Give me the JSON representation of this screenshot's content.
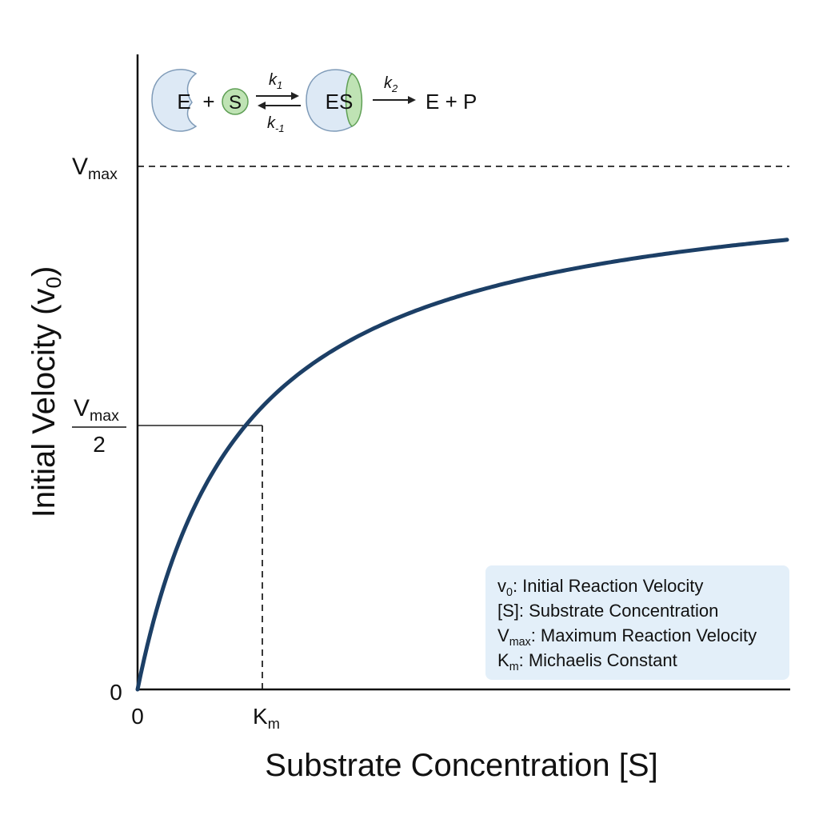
{
  "y_axis": {
    "label": {
      "text": "Initial Velocity (v",
      "sub": "0",
      "end": ")"
    }
  },
  "x_axis": {
    "label": "Substrate Concentration [S]"
  },
  "ticks": {
    "x_origin": "0",
    "y_origin": "0",
    "km": {
      "text": "K",
      "sub": "m"
    },
    "vmax": {
      "text": "V",
      "sub": "max"
    },
    "half_vmax": {
      "text": "V",
      "sub": "max",
      "denominator": "2"
    }
  },
  "reaction": {
    "enzyme": "E",
    "plus": "+",
    "substrate": "S",
    "k1": {
      "text": "k",
      "sub": "1"
    },
    "k_minus1": {
      "text": "k",
      "sub": "-1"
    },
    "complex": "ES",
    "k2": {
      "text": "k",
      "sub": "2"
    },
    "products": "E + P"
  },
  "legend": [
    {
      "text": "v",
      "sub": "0",
      "end": ": Initial Reaction Velocity"
    },
    {
      "text": "[S]: Substrate Concentration"
    },
    {
      "text": "V",
      "sub": "max",
      "end": ": Maximum Reaction Velocity"
    },
    {
      "text": "K",
      "sub": "m",
      "end": ": Michaelis Constant"
    }
  ]
}
